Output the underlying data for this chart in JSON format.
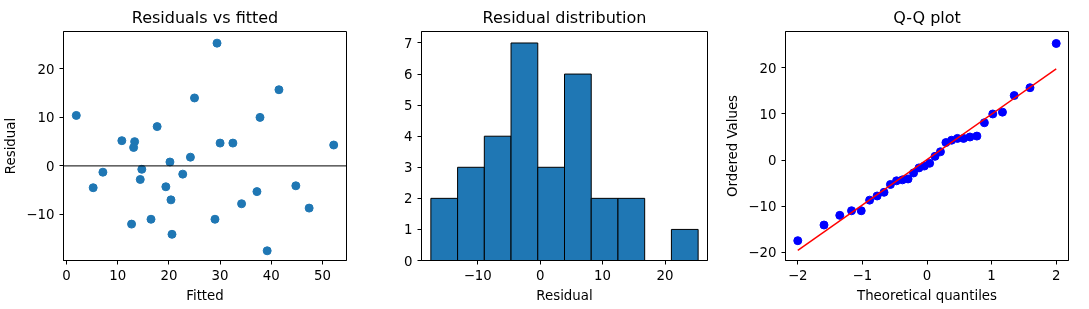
{
  "chart_data": [
    {
      "type": "scatter",
      "title": "Residuals vs fitted",
      "xlabel": "Fitted",
      "ylabel": "Residual",
      "marker": "circle",
      "grid": false,
      "x": [
        1.9,
        5.2,
        7.1,
        10.8,
        13.3,
        13.1,
        14.7,
        14.4,
        12.7,
        16.5,
        17.7,
        19.4,
        20.2,
        20.4,
        20.6,
        22.7,
        24.2,
        25.0,
        29.4,
        29.0,
        30.0,
        32.5,
        34.2,
        37.2,
        37.8,
        39.2,
        41.5,
        44.8,
        47.4,
        52.2
      ],
      "series": [
        {
          "color": "#1f77b4",
          "values": [
            10.4,
            -4.5,
            -1.3,
            5.2,
            5.0,
            3.8,
            -0.7,
            -2.8,
            -12.0,
            -11.0,
            8.1,
            -4.3,
            0.8,
            -7.0,
            -14.1,
            -1.7,
            1.8,
            14.0,
            25.3,
            -11.0,
            4.7,
            4.7,
            -7.8,
            -5.3,
            10.0,
            -17.5,
            15.7,
            -4.1,
            -8.7,
            4.3
          ]
        }
      ],
      "ref_lines": [
        {
          "axis": "y",
          "value": 0,
          "color": "#000000"
        }
      ],
      "xlim": [
        -0.6,
        54.7
      ],
      "ylim": [
        -19.5,
        27.7
      ],
      "xticks": [
        0,
        10,
        20,
        30,
        40,
        50
      ],
      "yticks": [
        -10,
        0,
        10,
        20
      ]
    },
    {
      "type": "histogram",
      "title": "Residual distribution",
      "xlabel": "Residual",
      "grid": false,
      "color": "#1f77b4",
      "bins": [
        -17.5,
        -13.22,
        -8.94,
        -4.66,
        -0.38,
        3.9,
        8.18,
        12.46,
        16.74,
        21.02,
        25.3
      ],
      "values": [
        2,
        3,
        4,
        7,
        3,
        6,
        2,
        2,
        0,
        1
      ],
      "xlim": [
        -19.0,
        26.8
      ],
      "ylim": [
        0,
        7.37
      ],
      "xticks": [
        -10,
        0,
        10,
        20
      ],
      "yticks": [
        0,
        1,
        2,
        3,
        4,
        5,
        6,
        7
      ]
    },
    {
      "type": "scatter",
      "title": "Q-Q plot",
      "xlabel": "Theoretical quantiles",
      "ylabel": "Ordered Values",
      "grid": false,
      "x": [
        -2.0,
        -1.594,
        -1.35,
        -1.168,
        -1.018,
        -0.888,
        -0.772,
        -0.665,
        -0.566,
        -0.471,
        -0.38,
        -0.293,
        -0.208,
        -0.124,
        -0.041,
        0.041,
        0.124,
        0.208,
        0.293,
        0.38,
        0.471,
        0.566,
        0.665,
        0.772,
        0.888,
        1.018,
        1.168,
        1.35,
        1.594,
        2.0
      ],
      "series": [
        {
          "color": "#0000ff",
          "marker": "circle",
          "values": [
            -17.5,
            -14.1,
            -12.0,
            -11.0,
            -11.0,
            -8.7,
            -7.8,
            -7.0,
            -5.3,
            -4.5,
            -4.3,
            -4.1,
            -2.8,
            -1.7,
            -1.3,
            -0.7,
            0.8,
            1.8,
            3.8,
            4.3,
            4.7,
            4.7,
            5.0,
            5.2,
            8.1,
            10.0,
            10.4,
            14.0,
            15.7,
            25.3
          ]
        },
        {
          "type": "line",
          "color": "#ff0000",
          "x": [
            -2.0,
            2.0
          ],
          "values": [
            -19.6,
            19.8
          ]
        }
      ],
      "xlim": [
        -2.19,
        2.19
      ],
      "ylim": [
        -21.8,
        27.9
      ],
      "xticks": [
        -2,
        -1,
        0,
        1,
        2
      ],
      "yticks": [
        -20,
        -10,
        0,
        10,
        20
      ]
    }
  ]
}
